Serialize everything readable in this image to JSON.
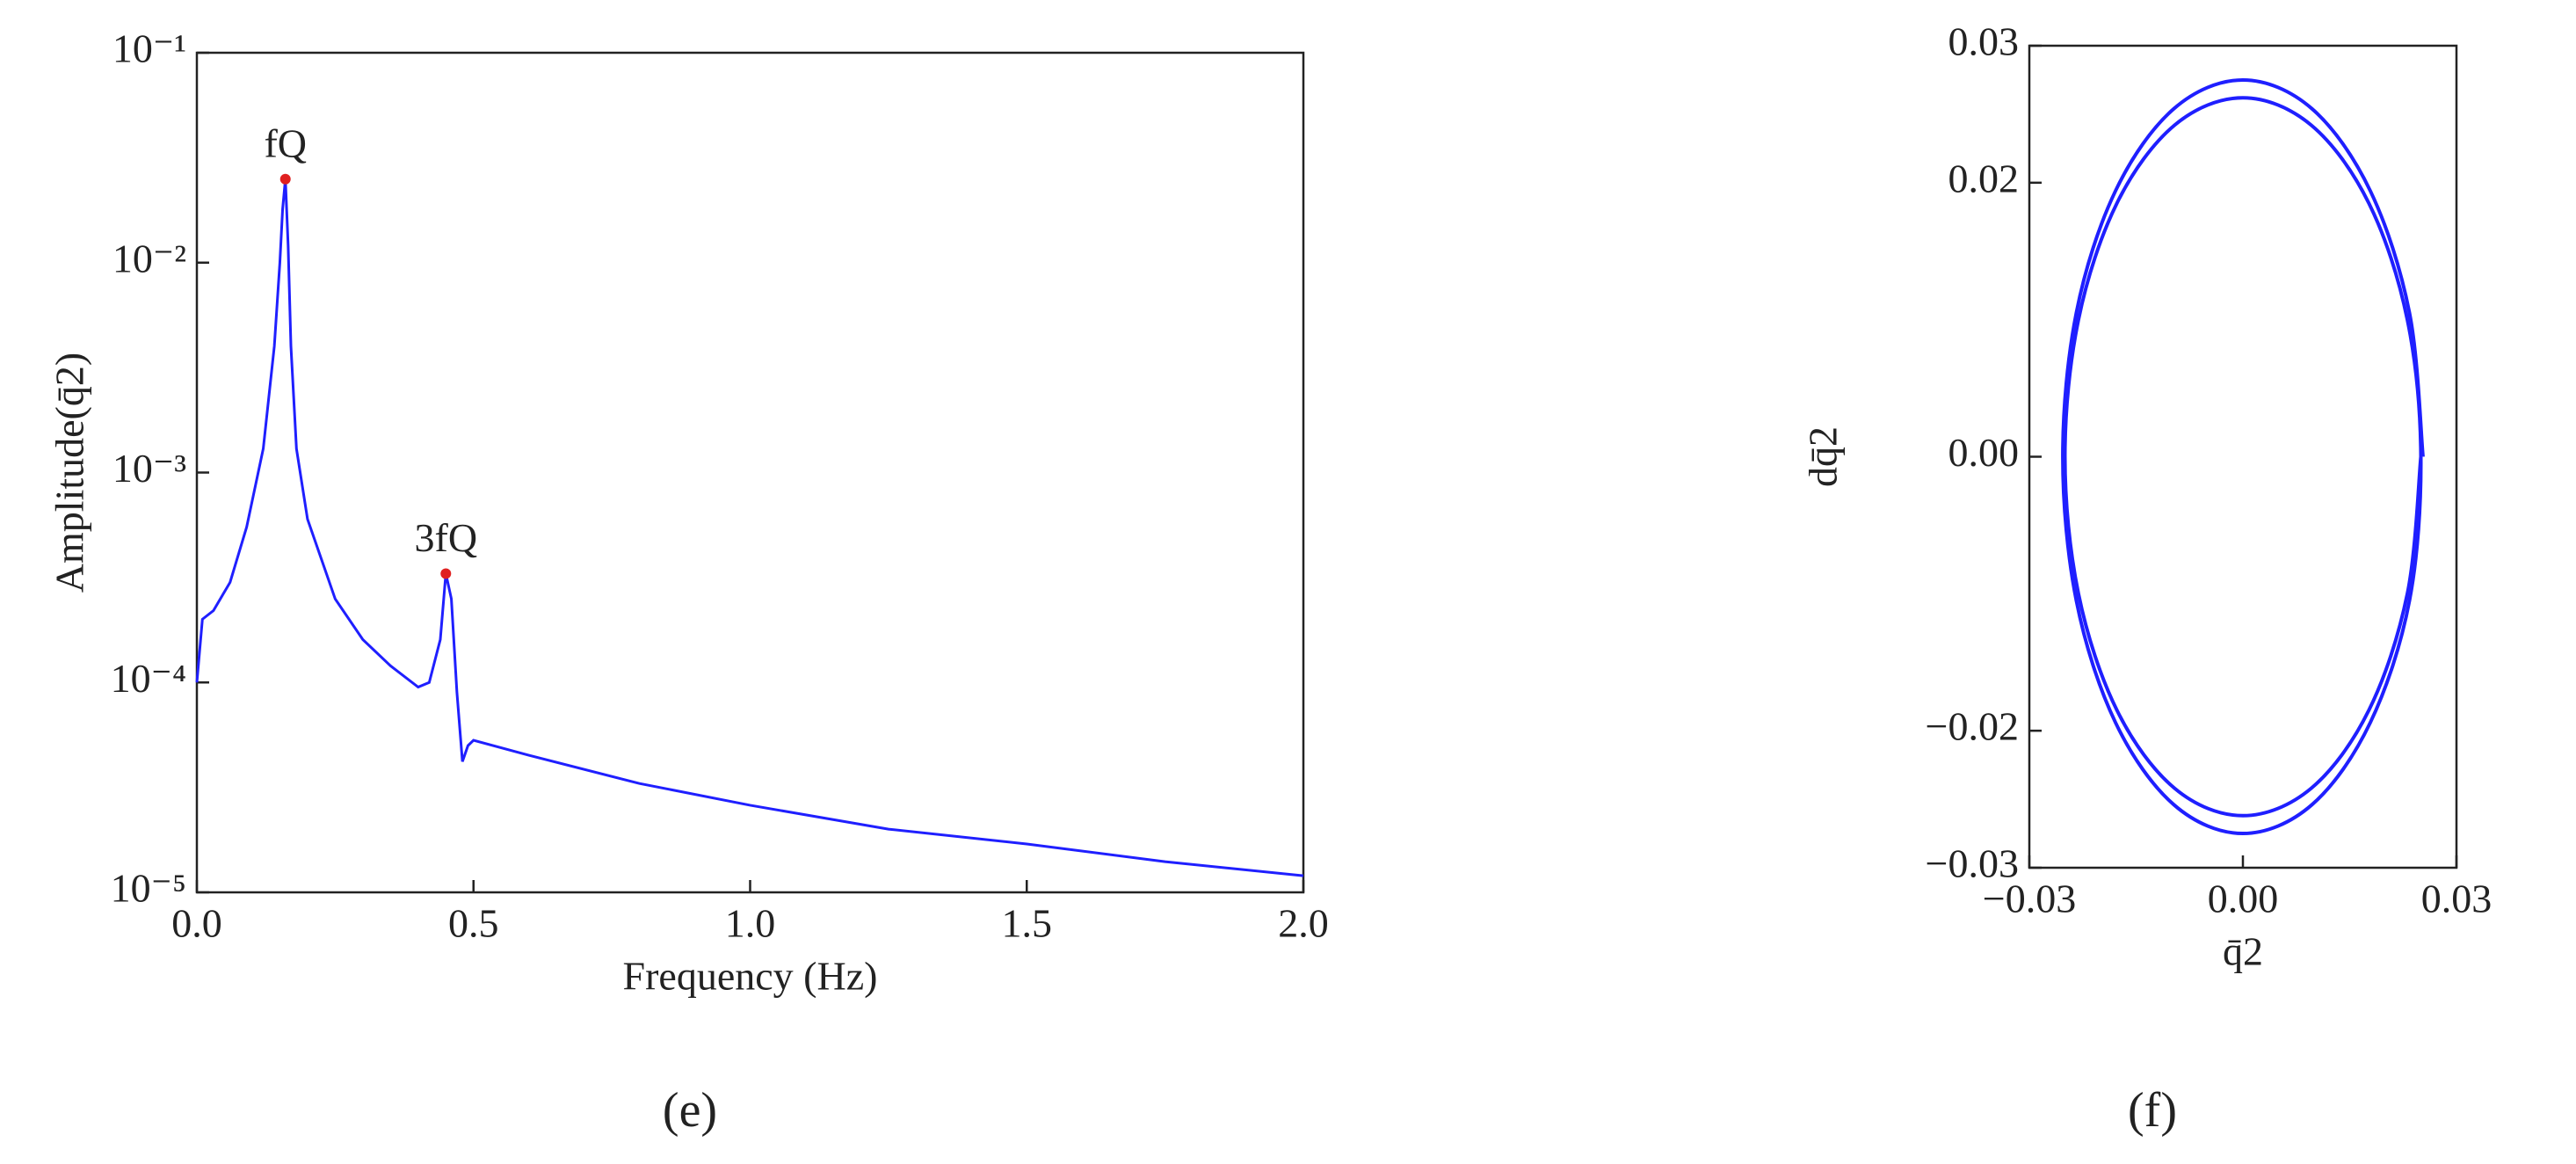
{
  "chart_data": [
    {
      "type": "line",
      "caption": "(e)",
      "xlabel": "Frequency (Hz)",
      "ylabel": "Amplitude(q̄2)",
      "log_y": true,
      "color": "#1f1fff",
      "marker_color": "#e02020",
      "xlim": [
        0,
        2
      ],
      "xticks": [
        {
          "value": 0,
          "label": "0.0"
        },
        0.5,
        {
          "value": 1,
          "label": "1.0"
        },
        1.5,
        {
          "value": 2,
          "label": "2.0"
        }
      ],
      "ylim": [
        1e-05,
        0.1
      ],
      "yticks": [
        {
          "value": 1e-05,
          "label": "10⁻⁵"
        },
        {
          "value": 0.0001,
          "label": "10⁻⁴"
        },
        {
          "value": 0.001,
          "label": "10⁻³"
        },
        {
          "value": 0.01,
          "label": "10⁻²"
        },
        {
          "value": 0.1,
          "label": "10⁻¹"
        }
      ],
      "x": [
        0,
        0.01,
        0.03,
        0.06,
        0.09,
        0.12,
        0.14,
        0.15,
        0.155,
        0.16,
        0.165,
        0.17,
        0.18,
        0.2,
        0.25,
        0.3,
        0.35,
        0.4,
        0.42,
        0.44,
        0.45,
        0.46,
        0.47,
        0.48,
        0.49,
        0.5,
        0.6,
        0.8,
        1.0,
        1.25,
        1.5,
        1.75,
        2.0
      ],
      "values": [
        0.0001,
        0.0002,
        0.00022,
        0.0003,
        0.00055,
        0.0013,
        0.004,
        0.01,
        0.018,
        0.025,
        0.012,
        0.004,
        0.0013,
        0.0006,
        0.00025,
        0.00016,
        0.00012,
        9.5e-05,
        0.0001,
        0.00016,
        0.00033,
        0.00025,
        9e-05,
        4.2e-05,
        5e-05,
        5.3e-05,
        4.5e-05,
        3.3e-05,
        2.6e-05,
        2e-05,
        1.7e-05,
        1.4e-05,
        1.2e-05
      ],
      "annotations": [
        {
          "text": "fQ",
          "x": 0.16,
          "y": 0.025
        },
        {
          "text": "3fQ",
          "x": 0.45,
          "y": 0.00033
        }
      ]
    },
    {
      "type": "line",
      "caption": "(f)",
      "xlabel": "q̄2",
      "ylabel": "dq̄2",
      "smooth": true,
      "color": "#1f1fff",
      "xlim": [
        -0.03,
        0.03
      ],
      "xticks": [
        {
          "value": -0.03,
          "label": "−0.03"
        },
        {
          "value": 0,
          "label": "0.00"
        },
        0.03
      ],
      "ylim": [
        -0.03,
        0.03
      ],
      "yticks": [
        {
          "value": -0.03,
          "label": "−0.03"
        },
        {
          "value": -0.02,
          "label": "−0.02"
        },
        {
          "value": 0,
          "label": "0.00"
        },
        0.02,
        0.03
      ],
      "x": [
        0.0253,
        0.0234,
        0.0179,
        0.0097,
        0,
        -0.0097,
        -0.0179,
        -0.0234,
        -0.0253,
        -0.0234,
        -0.0179,
        -0.0097,
        0,
        0.0097,
        0.0179,
        0.0234,
        0.025,
        0.0231,
        0.0177,
        0.0096,
        0,
        -0.0096,
        -0.0177,
        -0.0231,
        -0.025,
        -0.0231,
        -0.0177,
        -0.0096,
        0,
        0.0096,
        0.0177,
        0.0231,
        0.025
      ],
      "values": [
        0,
        0.0105,
        0.0194,
        0.0254,
        0.0275,
        0.0254,
        0.0194,
        0.0105,
        0,
        -0.0105,
        -0.0194,
        -0.0254,
        -0.0275,
        -0.0254,
        -0.0194,
        -0.0105,
        0,
        0.01,
        0.0185,
        0.0242,
        0.0262,
        0.0242,
        0.0185,
        0.01,
        0,
        -0.01,
        -0.0185,
        -0.0242,
        -0.0262,
        -0.0242,
        -0.0185,
        -0.01,
        0
      ]
    }
  ]
}
